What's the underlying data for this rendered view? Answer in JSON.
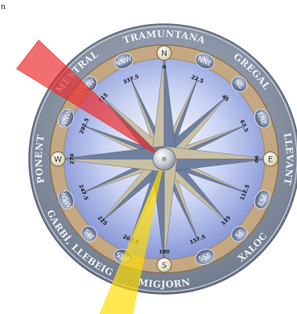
{
  "corner_label": "n",
  "winds": [
    {
      "name": "TRAMUNTANA",
      "angle": 0
    },
    {
      "name": "GREGAL",
      "angle": 45
    },
    {
      "name": "LLEVANT",
      "angle": 90
    },
    {
      "name": "XALOC",
      "angle": 135
    },
    {
      "name": "MIGJORN",
      "angle": 180
    },
    {
      "name": "GARBÍ, LLEBEIG",
      "angle": 225
    },
    {
      "name": "PONENT",
      "angle": 270
    },
    {
      "name": "MESTRAL",
      "angle": 315
    }
  ],
  "directions": [
    {
      "label": "N",
      "angle": 0,
      "degree": "0"
    },
    {
      "label": "NNE",
      "angle": 22.5,
      "degree": "22.5"
    },
    {
      "label": "NE",
      "angle": 45,
      "degree": "45"
    },
    {
      "label": "ENE",
      "angle": 67.5,
      "degree": "67.5"
    },
    {
      "label": "E",
      "angle": 90,
      "degree": "90"
    },
    {
      "label": "ESE",
      "angle": 112.5,
      "degree": "112.5"
    },
    {
      "label": "SE",
      "angle": 135,
      "degree": "135"
    },
    {
      "label": "SSE",
      "angle": 157.5,
      "degree": "157.5"
    },
    {
      "label": "S",
      "angle": 180,
      "degree": "180"
    },
    {
      "label": "SSW",
      "angle": 202.5,
      "degree": "202.5"
    },
    {
      "label": "SW",
      "angle": 225,
      "degree": "225"
    },
    {
      "label": "WSW",
      "angle": 247.5,
      "degree": "247.5"
    },
    {
      "label": "W",
      "angle": 270,
      "degree": "270"
    },
    {
      "label": "WNW",
      "angle": 292.5,
      "degree": "292.5"
    },
    {
      "label": "NW",
      "angle": 315,
      "degree": "315"
    },
    {
      "label": "NNW",
      "angle": 337.5,
      "degree": "337.5"
    }
  ],
  "pointers": [
    {
      "color": "#ee2a2a",
      "angle": 307.5,
      "spread": 6
    },
    {
      "color": "#ffdc00",
      "angle": 197,
      "spread": 5.5
    }
  ],
  "colors": {
    "outer_ring": "#8a96a8",
    "inner_ring": "#c4a882",
    "face": "#c8d4f0",
    "star_light": "#c9c0a4",
    "star_dark": "#6f7fa0",
    "badge": "#5d6a86"
  }
}
